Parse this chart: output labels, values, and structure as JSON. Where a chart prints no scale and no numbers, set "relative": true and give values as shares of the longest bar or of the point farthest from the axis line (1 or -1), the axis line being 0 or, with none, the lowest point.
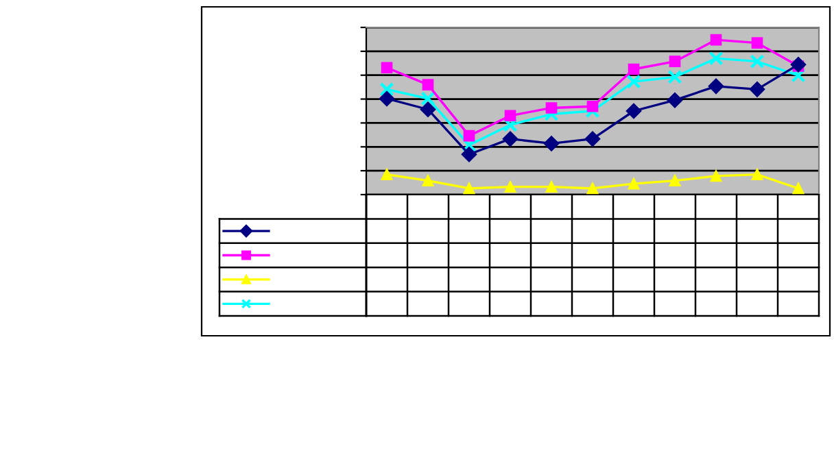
{
  "chart_data": {
    "type": "line",
    "relative": true,
    "grid": "y",
    "categories": [
      null,
      null,
      null,
      null,
      null,
      null,
      null,
      null,
      null,
      null,
      null
    ],
    "series": [
      {
        "color": "#000080",
        "marker": "diamond",
        "values": [
          0.62,
          0.55,
          0.26,
          0.36,
          0.33,
          0.36,
          0.54,
          0.61,
          0.7,
          0.68,
          0.84
        ]
      },
      {
        "color": "#ff00ff",
        "marker": "square",
        "values": [
          0.82,
          0.71,
          0.38,
          0.51,
          0.56,
          0.57,
          0.81,
          0.86,
          1.0,
          0.98,
          0.83
        ]
      },
      {
        "color": "#ffff00",
        "marker": "triangle",
        "values": [
          0.13,
          0.09,
          0.04,
          0.05,
          0.05,
          0.04,
          0.07,
          0.09,
          0.12,
          0.13,
          0.04
        ]
      },
      {
        "color": "#00ffff",
        "marker": "cross",
        "values": [
          0.68,
          0.62,
          0.32,
          0.45,
          0.52,
          0.54,
          0.73,
          0.76,
          0.88,
          0.86,
          0.77
        ]
      }
    ]
  }
}
